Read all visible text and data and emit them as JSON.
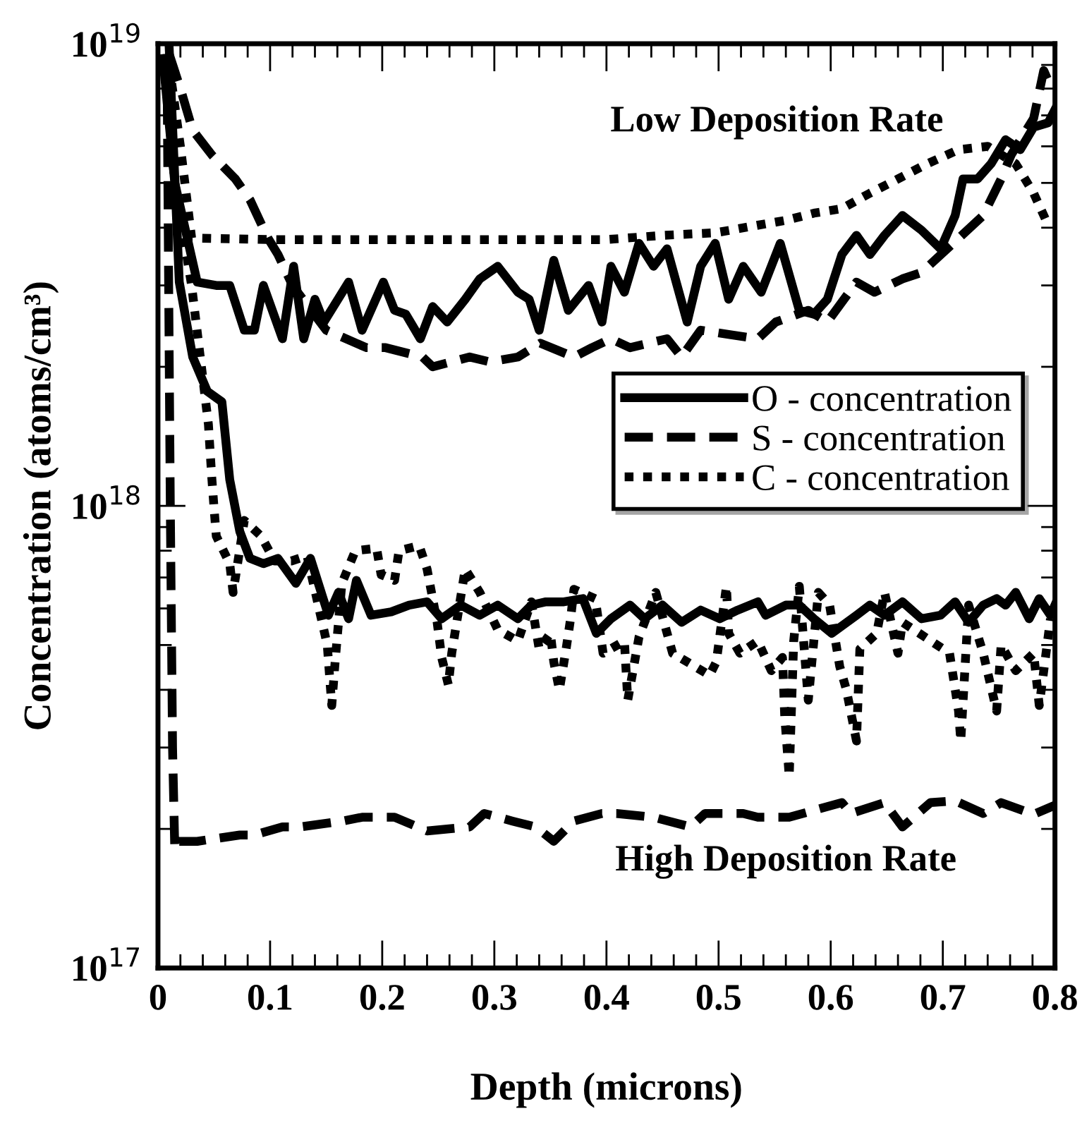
{
  "chart_data": {
    "type": "line",
    "xlabel": "Depth (microns)",
    "ylabel": "Concentration (atoms/cm³)",
    "log": "y",
    "xlim": [
      0,
      0.8
    ],
    "ylim": [
      1e+17,
      1e+19
    ],
    "xticks": [
      0,
      0.1,
      0.2,
      0.3,
      0.4,
      0.5,
      0.6,
      0.7,
      0.8
    ],
    "yticks": [
      {
        "value": 1e+17,
        "label": "10$^{17}$"
      },
      {
        "value": 1e+18,
        "label": "10$^{18}$"
      },
      {
        "value": 1e+19,
        "label": "10$^{19}$"
      }
    ],
    "grid": false,
    "legend": "right",
    "marker": "none",
    "annotations": [
      "Low Deposition Rate",
      "High Deposition Rate"
    ],
    "series": [
      {
        "name": "O - concentration",
        "color": "#000000",
        "line_style": "solid",
        "x": [
          0.005,
          0.015,
          0.035,
          0.052,
          0.064,
          0.077,
          0.086,
          0.094,
          0.111,
          0.121,
          0.13,
          0.14,
          0.148,
          0.17,
          0.182,
          0.201,
          0.211,
          0.221,
          0.234,
          0.245,
          0.258,
          0.274,
          0.287,
          0.303,
          0.321,
          0.331,
          0.34,
          0.353,
          0.366,
          0.384,
          0.396,
          0.404,
          0.416,
          0.429,
          0.442,
          0.454,
          0.472,
          0.484,
          0.497,
          0.509,
          0.522,
          0.538,
          0.555,
          0.572,
          0.585,
          0.597,
          0.61,
          0.623,
          0.635,
          0.648,
          0.664,
          0.681,
          0.698,
          0.711,
          0.718,
          0.731,
          0.743,
          0.756,
          0.769,
          0.781,
          0.794,
          0.8
        ],
        "values": [
          9e+18,
          5e+18,
          3.05e+18,
          3e+18,
          3e+18,
          2.4e+18,
          2.4e+18,
          3e+18,
          2.3e+18,
          3.3e+18,
          2.3e+18,
          2.8e+18,
          2.5e+18,
          3.05e+18,
          2.4e+18,
          3.05e+18,
          2.65e+18,
          2.6e+18,
          2.3e+18,
          2.7e+18,
          2.5e+18,
          2.8e+18,
          3.1e+18,
          3.3e+18,
          2.9e+18,
          2.8e+18,
          2.4e+18,
          3.4e+18,
          2.65e+18,
          3e+18,
          2.5e+18,
          3.3e+18,
          2.9e+18,
          3.7e+18,
          3.3e+18,
          3.6e+18,
          2.5e+18,
          3.3e+18,
          3.7e+18,
          2.8e+18,
          3.3e+18,
          2.9e+18,
          3.7e+18,
          2.65e+18,
          2.6e+18,
          2.8e+18,
          3.5e+18,
          3.85e+18,
          3.5e+18,
          3.85e+18,
          4.25e+18,
          3.95e+18,
          3.6e+18,
          4.25e+18,
          5.1e+18,
          5.1e+18,
          5.5e+18,
          6.2e+18,
          5.9e+18,
          6.6e+18,
          6.75e+18,
          7.2e+18
        ]
      },
      {
        "name": "S - concentration",
        "color": "#000000",
        "line_style": "dashed",
        "x": [
          0.01,
          0.02,
          0.031,
          0.048,
          0.069,
          0.082,
          0.098,
          0.107,
          0.12,
          0.15,
          0.186,
          0.203,
          0.236,
          0.245,
          0.278,
          0.296,
          0.321,
          0.341,
          0.371,
          0.387,
          0.404,
          0.421,
          0.454,
          0.467,
          0.484,
          0.509,
          0.535,
          0.551,
          0.58,
          0.597,
          0.623,
          0.639,
          0.664,
          0.681,
          0.736,
          0.752,
          0.761,
          0.781,
          0.79,
          0.796
        ],
        "values": [
          9.5e+18,
          8e+18,
          6.5e+18,
          5.75e+18,
          5.1e+18,
          4.6e+18,
          3.8e+18,
          3.5e+18,
          3e+18,
          2.4e+18,
          2.2e+18,
          2.2e+18,
          2.1e+18,
          2e+18,
          2.1e+18,
          2.05e+18,
          2.1e+18,
          2.25e+18,
          2.1e+18,
          2.2e+18,
          2.3e+18,
          2.2e+18,
          2.3e+18,
          2.1e+18,
          2.4e+18,
          2.35e+18,
          2.3e+18,
          2.5e+18,
          2.65e+18,
          2.5e+18,
          3.05e+18,
          2.9e+18,
          3.1e+18,
          3.2e+18,
          4.25e+18,
          5.1e+18,
          5.75e+18,
          6.9e+18,
          8.75e+18,
          8.1e+18
        ]
      },
      {
        "name": "C - concentration",
        "color": "#000000",
        "line_style": "dotted",
        "x": [
          0.01,
          0.02,
          0.03,
          0.1,
          0.2,
          0.3,
          0.4,
          0.45,
          0.497,
          0.513,
          0.535,
          0.56,
          0.585,
          0.61,
          0.635,
          0.66,
          0.686,
          0.714,
          0.74,
          0.765,
          0.781,
          0.794
        ],
        "values": [
          9e+18,
          6e+18,
          3.8e+18,
          3.77e+18,
          3.77e+18,
          3.77e+18,
          3.77e+18,
          3.85e+18,
          3.9e+18,
          3.96e+18,
          4.05e+18,
          4.15e+18,
          4.3e+18,
          4.4e+18,
          4.75e+18,
          5.1e+18,
          5.5e+18,
          5.9e+18,
          6e+18,
          5.5e+18,
          4.75e+18,
          4.05e+18
        ]
      },
      {
        "color": "#000000",
        "line_style": "solid",
        "x": [
          0.01,
          0.019,
          0.031,
          0.044,
          0.057,
          0.064,
          0.073,
          0.082,
          0.094,
          0.107,
          0.123,
          0.136,
          0.152,
          0.161,
          0.17,
          0.177,
          0.19,
          0.208,
          0.224,
          0.24,
          0.253,
          0.27,
          0.287,
          0.303,
          0.321,
          0.333,
          0.346,
          0.362,
          0.379,
          0.391,
          0.404,
          0.421,
          0.434,
          0.45,
          0.467,
          0.484,
          0.501,
          0.517,
          0.535,
          0.542,
          0.56,
          0.572,
          0.585,
          0.601,
          0.623,
          0.635,
          0.648,
          0.664,
          0.681,
          0.698,
          0.711,
          0.723,
          0.736,
          0.748,
          0.756,
          0.765,
          0.777,
          0.786,
          0.796,
          0.8
        ],
        "values": [
          9.8e+18,
          3.05e+18,
          2.1e+18,
          1.77e+18,
          1.68e+18,
          1.14e+18,
          8.8e+17,
          7.7e+17,
          7.5e+17,
          7.7e+17,
          6.8e+17,
          7.7e+17,
          5.8e+17,
          6.5e+17,
          5.7e+17,
          6.9e+17,
          5.8e+17,
          5.9e+17,
          6.1e+17,
          6.2e+17,
          5.7e+17,
          6.1e+17,
          5.8e+17,
          6.1e+17,
          5.7e+17,
          6.1e+17,
          6.2e+17,
          6.2e+17,
          6.3e+17,
          5.3e+17,
          5.7e+17,
          6.1e+17,
          5.7e+17,
          6.1e+17,
          5.6e+17,
          5.95e+17,
          5.7e+17,
          5.95e+17,
          6.2e+17,
          5.8e+17,
          6.1e+17,
          6.1e+17,
          5.7e+17,
          5.3e+17,
          5.8e+17,
          6.1e+17,
          5.8e+17,
          6.2e+17,
          5.7e+17,
          5.8e+17,
          6.2e+17,
          5.6e+17,
          6.1e+17,
          6.3e+17,
          6.1e+17,
          6.5e+17,
          5.7e+17,
          6.3e+17,
          5.8e+17,
          6.1e+17
        ]
      },
      {
        "color": "#000000",
        "line_style": "dashed",
        "x": [
          0.008,
          0.011,
          0.013,
          0.015,
          0.019,
          0.035,
          0.073,
          0.086,
          0.111,
          0.127,
          0.165,
          0.182,
          0.211,
          0.24,
          0.278,
          0.291,
          0.316,
          0.337,
          0.353,
          0.371,
          0.396,
          0.409,
          0.442,
          0.475,
          0.488,
          0.522,
          0.535,
          0.563,
          0.61,
          0.618,
          0.648,
          0.664,
          0.689,
          0.711,
          0.736,
          0.752,
          0.781,
          0.8
        ],
        "values": [
          9.5e+18,
          1e+18,
          3e+17,
          1.8e+17,
          1.88e+17,
          1.88e+17,
          1.94e+17,
          1.94e+17,
          2.02e+17,
          2.02e+17,
          2.08e+17,
          2.12e+17,
          2.12e+17,
          1.98e+17,
          2.02e+17,
          2.16e+17,
          2.08e+17,
          2.02e+17,
          1.88e+17,
          2.08e+17,
          2.16e+17,
          2.16e+17,
          2.12e+17,
          2.02e+17,
          2.16e+17,
          2.16e+17,
          2.12e+17,
          2.12e+17,
          2.28e+17,
          2.16e+17,
          2.28e+17,
          2.02e+17,
          2.28e+17,
          2.3e+17,
          2.16e+17,
          2.28e+17,
          2.15e+17,
          2.25e+17
        ]
      },
      {
        "color": "#000000",
        "line_style": "dotted",
        "x": [
          0.005,
          0.015,
          0.03,
          0.045,
          0.048,
          0.05,
          0.052,
          0.064,
          0.067,
          0.077,
          0.092,
          0.104,
          0.119,
          0.133,
          0.151,
          0.153,
          0.155,
          0.158,
          0.164,
          0.176,
          0.195,
          0.199,
          0.211,
          0.215,
          0.233,
          0.24,
          0.249,
          0.253,
          0.259,
          0.262,
          0.274,
          0.287,
          0.303,
          0.321,
          0.333,
          0.34,
          0.35,
          0.353,
          0.358,
          0.364,
          0.368,
          0.371,
          0.39,
          0.397,
          0.416,
          0.419,
          0.429,
          0.444,
          0.459,
          0.492,
          0.498,
          0.507,
          0.509,
          0.519,
          0.535,
          0.547,
          0.557,
          0.559,
          0.563,
          0.567,
          0.572,
          0.58,
          0.589,
          0.599,
          0.608,
          0.614,
          0.623,
          0.626,
          0.641,
          0.648,
          0.66,
          0.664,
          0.706,
          0.714,
          0.716,
          0.723,
          0.736,
          0.748,
          0.752,
          0.765,
          0.781,
          0.786,
          0.796
        ],
        "values": [
          9.5e+18,
          5e+18,
          3e+18,
          1.5e+18,
          1.15e+18,
          9.9e+17,
          8.6e+17,
          7.5e+17,
          6.5e+17,
          9.3e+17,
          8.6e+17,
          7.6e+17,
          7.6e+17,
          7.8e+17,
          5e+17,
          4.3e+17,
          3.7e+17,
          4.6e+17,
          6.8e+17,
          8e+17,
          8.1e+17,
          7.1e+17,
          6.9e+17,
          8e+17,
          8.2e+17,
          7.3e+17,
          5.6e+17,
          4.7e+17,
          4.1e+17,
          4.8e+17,
          7.3e+17,
          6.5e+17,
          5.4e+17,
          5.1e+17,
          6.2e+17,
          4.9e+17,
          5.3e+17,
          4.6e+17,
          4e+17,
          4.9e+17,
          5.7e+17,
          6.6e+17,
          6.3e+17,
          4.8e+17,
          5.1e+17,
          3.8e+17,
          5.2e+17,
          6.5e+17,
          4.8e+17,
          4.3e+17,
          4.6e+17,
          6.7e+17,
          5.3e+17,
          4.8e+17,
          5.1e+17,
          4.4e+17,
          4.7e+17,
          3.5e+17,
          2.6e+17,
          5.1e+17,
          6.7e+17,
          3.8e+17,
          6.5e+17,
          6.1e+17,
          4.5e+17,
          4e+17,
          3.1e+17,
          4.9e+17,
          5.3e+17,
          6.5e+17,
          4.8e+17,
          5.6e+17,
          4.8e+17,
          3.6e+17,
          3.1e+17,
          6.1e+17,
          4.8e+17,
          3.6e+17,
          5e+17,
          4.4e+17,
          4.8e+17,
          3.7e+17,
          5.7e+17
        ]
      }
    ]
  }
}
